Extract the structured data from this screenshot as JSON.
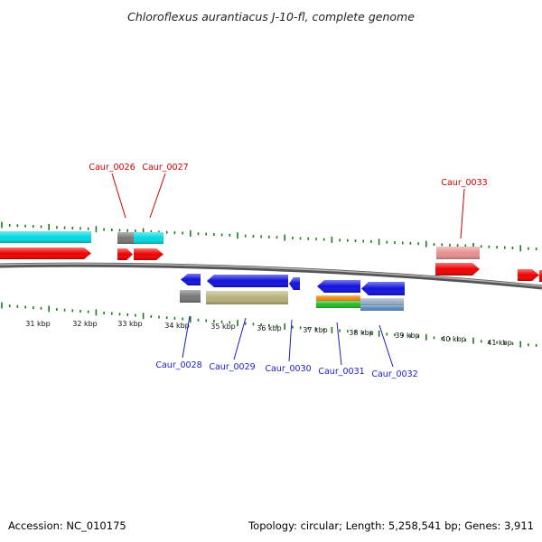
{
  "title": "Chloroflexus aurantiacus J-10-fl, complete genome",
  "footer": {
    "accession": "Accession: NC_010175",
    "summary": "Topology: circular; Length: 5,258,541 bp; Genes: 3,911"
  },
  "colors": {
    "forward_label": "#cc0000",
    "reverse_label": "#1a1acc",
    "tick": "#1e7a1e",
    "backbone": "#888888",
    "cds_forward": "#ee0000",
    "cds_reverse": "#1010dd",
    "cyan": "#00d8e0",
    "grey": "#777777",
    "khaki": "#b8b07a",
    "salmon": "#e89090",
    "orange": "#f08a10",
    "green": "#22bb22",
    "lightblue": "#9ab0c8",
    "steelblue": "#5a8ac0"
  },
  "kbp_labels": [
    "31 kbp",
    "32 kbp",
    "33 kbp",
    "34 kbp",
    "35 kbp",
    "36 kbp",
    "37 kbp",
    "38 kbp",
    "39 kbp",
    "40 kbp",
    "41 kbp"
  ],
  "forward_genes": [
    "Caur_0026",
    "Caur_0027",
    "Caur_0033"
  ],
  "reverse_genes": [
    "Caur_0028",
    "Caur_0029",
    "Caur_0030",
    "Caur_0031",
    "Caur_0032"
  ]
}
